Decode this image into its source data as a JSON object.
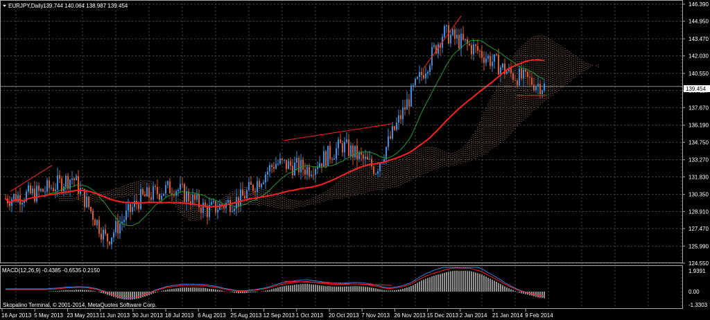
{
  "header": {
    "symbol_label": "EURJPY,Daily",
    "ohlc": "139.744 140.064 138.987 139.454"
  },
  "price_axis": {
    "ticks": [
      "146.390",
      "144.950",
      "143.470",
      "142.030",
      "140.550",
      "139.110",
      "137.670",
      "136.190",
      "134.750",
      "133.270",
      "131.830",
      "130.350",
      "128.910",
      "127.470",
      "125.990",
      "124.550"
    ],
    "current_price": "139.454"
  },
  "macd": {
    "label": "MACD(12,26,9) -0.4385 -0.6535 0.2150",
    "ticks": [
      "1.9391",
      "0.00",
      "-1.3303"
    ]
  },
  "time_axis": {
    "labels": [
      "16 Apr 2013",
      "5 May 2013",
      "23 May 2013",
      "11 Jun 2013",
      "30 Jun 2013",
      "18 Jul 2013",
      "6 Aug 2013",
      "25 Aug 2013",
      "12 Sep 2013",
      "1 Oct 2013",
      "20 Oct 2013",
      "7 Nov 2013",
      "26 Nov 2013",
      "15 Dec 2013",
      "2 Jan 2014",
      "21 Jan 2014",
      "9 Feb 2014"
    ]
  },
  "copyright": "Skopalino Terminal, © 2001-2014, MetaQuotes Software Corp.",
  "colors": {
    "background": "#000000",
    "grid": "#4a4a4a",
    "bull": "#3a8fe0",
    "bear": "#e05a2a",
    "ma_slow": "#ff2020",
    "ma_fast": "#1f9a2a",
    "cloud": "#f0b080",
    "macd_hist": "#d0d0d0",
    "macd_main": "#3a7fe0",
    "macd_signal": "#ff2020"
  },
  "chart_data": {
    "type": "candlestick",
    "symbol": "EURJPY",
    "timeframe": "Daily",
    "ylim": [
      124.55,
      146.39
    ],
    "close_points": [
      {
        "x": "16 Apr 2013",
        "y": 130.0
      },
      {
        "x": "5 May 2013",
        "y": 130.5
      },
      {
        "x": "23 May 2013",
        "y": 131.8
      },
      {
        "x": "11 Jun 2013",
        "y": 126.5
      },
      {
        "x": "30 Jun 2013",
        "y": 130.0
      },
      {
        "x": "18 Jul 2013",
        "y": 131.0
      },
      {
        "x": "6 Aug 2013",
        "y": 129.0
      },
      {
        "x": "25 Aug 2013",
        "y": 130.0
      },
      {
        "x": "12 Sep 2013",
        "y": 133.0
      },
      {
        "x": "1 Oct 2013",
        "y": 132.5
      },
      {
        "x": "20 Oct 2013",
        "y": 134.5
      },
      {
        "x": "7 Nov 2013",
        "y": 132.5
      },
      {
        "x": "26 Nov 2013",
        "y": 138.5
      },
      {
        "x": "15 Dec 2013",
        "y": 144.0
      },
      {
        "x": "2 Jan 2014",
        "y": 142.5
      },
      {
        "x": "21 Jan 2014",
        "y": 140.5
      },
      {
        "x": "9 Feb 2014",
        "y": 139.45
      }
    ]
  }
}
